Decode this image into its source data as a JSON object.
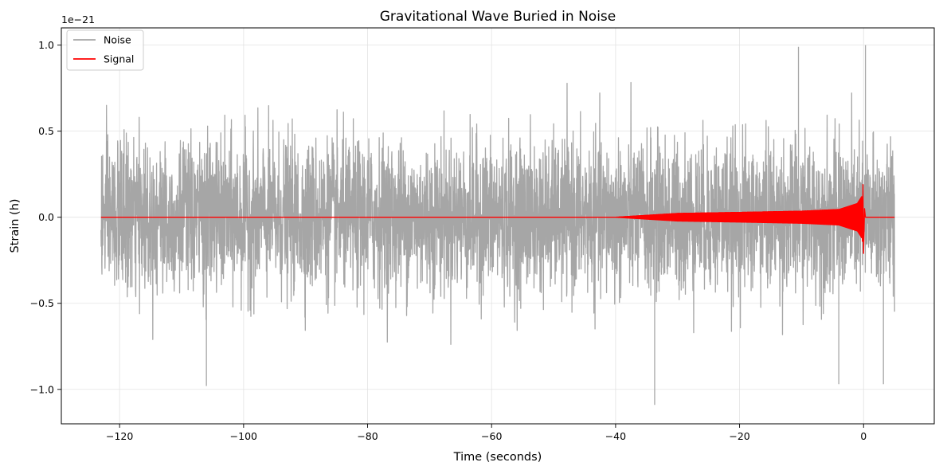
{
  "chart_data": {
    "type": "line",
    "title": "Gravitational Wave Buried in Noise",
    "xlabel": "Time (seconds)",
    "ylabel": "Strain (h)",
    "y_offset_label": "1e−21",
    "xlim": [
      -129.4,
      11.4
    ],
    "ylim": [
      -1.2,
      1.1
    ],
    "x_ticks": [
      -120,
      -100,
      -80,
      -60,
      -40,
      -20,
      0
    ],
    "x_tick_labels": [
      "−120",
      "−100",
      "−80",
      "−60",
      "−40",
      "−20",
      "0"
    ],
    "y_ticks": [
      -1.0,
      -0.5,
      0.0,
      0.5,
      1.0
    ],
    "y_tick_labels": [
      "−1.0",
      "−0.5",
      "0.0",
      "0.5",
      "1.0"
    ],
    "grid": true,
    "legend_position": "top-left",
    "series": [
      {
        "name": "Noise",
        "color": "#a6a6a6",
        "x_range": [
          -123,
          5
        ],
        "typical_amplitude": 0.52,
        "max": 1.0,
        "min": -1.09,
        "peaks": [
          {
            "x": -106,
            "y": -0.98
          },
          {
            "x": -33.7,
            "y": -1.09
          },
          {
            "x": 0.3,
            "y": 1.0
          },
          {
            "x": -10.5,
            "y": 0.99
          },
          {
            "x": -4,
            "y": -0.97
          },
          {
            "x": 3.2,
            "y": -0.97
          }
        ]
      },
      {
        "name": "Signal",
        "color": "#ff0000",
        "x_range": [
          -123,
          5
        ],
        "chirp_start": -40,
        "merger_time": 0,
        "envelope": [
          {
            "x": -40,
            "y": 0.0
          },
          {
            "x": -30,
            "y": 0.022
          },
          {
            "x": -20,
            "y": 0.028
          },
          {
            "x": -10,
            "y": 0.035
          },
          {
            "x": -4,
            "y": 0.045
          },
          {
            "x": -1,
            "y": 0.08
          },
          {
            "x": -0.3,
            "y": 0.12
          }
        ],
        "peak_max": 0.19,
        "peak_min": -0.21
      }
    ]
  }
}
